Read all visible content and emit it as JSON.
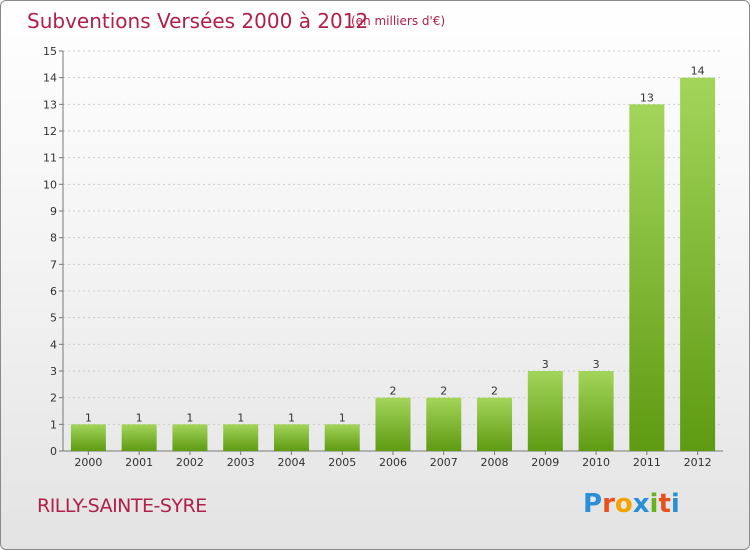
{
  "header": {
    "title": "Subventions Versées 2000 à 2012",
    "subtitle": "(en milliers d'€)"
  },
  "footer": {
    "commune": "RILLY-SAINTE-SYRE",
    "logo_text": "Proxiti",
    "logo_colors": [
      "#2a8fd6",
      "#e8501e",
      "#f2a300",
      "#2a8fd6",
      "#6ab023",
      "#e8501e",
      "#2a8fd6"
    ]
  },
  "colors": {
    "bar_top": "#a3d55a",
    "bar_bottom": "#5e9a12",
    "grid": "#cccccc",
    "axis": "#777777"
  },
  "chart_data": {
    "type": "bar",
    "title": "Subventions Versées 2000 à 2012",
    "subtitle": "(en milliers d'€)",
    "categories": [
      "2000",
      "2001",
      "2002",
      "2003",
      "2004",
      "2005",
      "2006",
      "2007",
      "2008",
      "2009",
      "2010",
      "2011",
      "2012"
    ],
    "values": [
      1,
      1,
      1,
      1,
      1,
      1,
      2,
      2,
      2,
      3,
      3,
      13,
      14
    ],
    "ylim": [
      0,
      15
    ],
    "yticks": [
      0,
      1,
      2,
      3,
      4,
      5,
      6,
      7,
      8,
      9,
      10,
      11,
      12,
      13,
      14,
      15
    ],
    "grid": true,
    "data_labels": true
  }
}
